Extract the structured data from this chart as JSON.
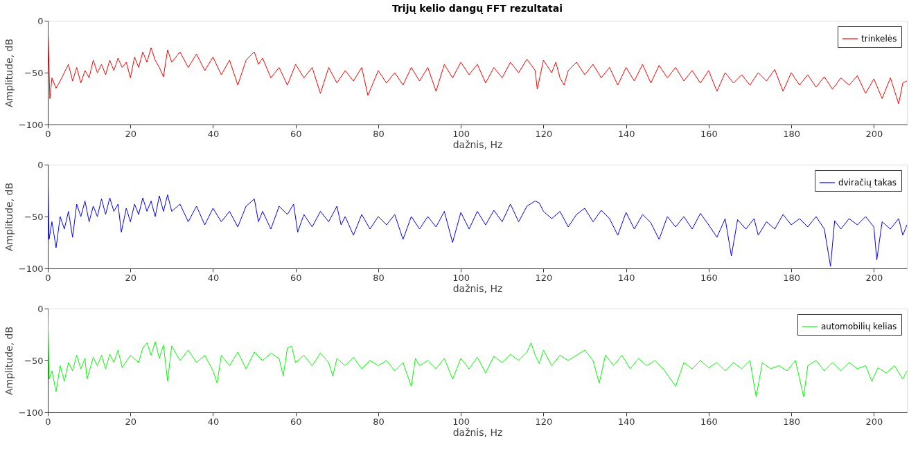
{
  "chart_data": [
    {
      "type": "line",
      "title": "Trijų kelio dangų FFT rezultatai",
      "xlabel": "dažnis, Hz",
      "ylabel": "Amplitude, dB",
      "xlim": [
        0,
        208
      ],
      "xticks": [
        0,
        20,
        40,
        60,
        80,
        100,
        120,
        140,
        160,
        180,
        200
      ],
      "ylim": [
        -100,
        0
      ],
      "yticks": [
        -100,
        -50,
        0
      ],
      "grid": false,
      "legend": "top right",
      "line_style": "solid",
      "marker": "none",
      "series": [
        {
          "name": "trinkelės",
          "color": "#ff0000",
          "x": [
            0,
            0.5,
            1,
            2,
            3,
            4,
            5,
            6,
            7,
            8,
            9,
            10,
            11,
            12,
            13,
            14,
            15,
            16,
            17,
            18,
            19,
            20,
            21,
            22,
            23,
            24,
            25,
            26,
            27,
            28,
            29,
            30,
            32,
            34,
            36,
            38,
            40,
            42,
            44,
            46,
            48,
            50,
            51,
            52,
            54,
            56,
            58,
            60,
            62,
            64,
            66,
            68,
            70,
            72,
            74,
            76,
            77.5,
            80,
            82,
            84,
            86,
            88,
            90,
            92,
            94,
            96,
            98,
            100,
            102,
            104,
            106,
            108,
            110,
            112,
            114,
            116,
            118,
            118.5,
            120,
            122,
            123,
            124,
            125,
            126,
            128,
            130,
            132,
            134,
            136,
            138,
            140,
            142,
            144,
            146,
            148,
            150,
            152,
            154,
            156,
            158,
            160,
            162,
            164,
            166,
            168,
            170,
            172,
            174,
            176,
            178,
            180,
            182,
            184,
            186,
            188,
            190,
            192,
            194,
            196,
            198,
            200,
            202,
            204,
            206,
            207,
            208
          ],
          "values": [
            0,
            -75,
            -55,
            -65,
            -58,
            -50,
            -42,
            -58,
            -45,
            -60,
            -48,
            -55,
            -38,
            -50,
            -42,
            -52,
            -38,
            -48,
            -36,
            -45,
            -40,
            -55,
            -35,
            -45,
            -30,
            -40,
            -26,
            -38,
            -45,
            -54,
            -28,
            -40,
            -30,
            -45,
            -32,
            -48,
            -35,
            -52,
            -38,
            -62,
            -38,
            -30,
            -42,
            -36,
            -55,
            -45,
            -62,
            -42,
            -55,
            -45,
            -70,
            -45,
            -60,
            -48,
            -58,
            -45,
            -72,
            -48,
            -60,
            -50,
            -62,
            -45,
            -58,
            -45,
            -68,
            -42,
            -55,
            -40,
            -52,
            -42,
            -60,
            -45,
            -55,
            -40,
            -50,
            -37,
            -48,
            -66,
            -38,
            -50,
            -40,
            -55,
            -62,
            -48,
            -40,
            -52,
            -42,
            -55,
            -45,
            -62,
            -45,
            -58,
            -42,
            -60,
            -43,
            -55,
            -45,
            -58,
            -48,
            -60,
            -48,
            -68,
            -50,
            -60,
            -52,
            -62,
            -50,
            -58,
            -47,
            -68,
            -50,
            -62,
            -52,
            -64,
            -54,
            -66,
            -55,
            -62,
            -53,
            -70,
            -56,
            -75,
            -55,
            -80,
            -60,
            -58
          ]
        }
      ]
    },
    {
      "type": "line",
      "xlabel": "dažnis, Hz",
      "ylabel": "Amplitude, dB",
      "xlim": [
        0,
        208
      ],
      "xticks": [
        0,
        20,
        40,
        60,
        80,
        100,
        120,
        140,
        160,
        180,
        200
      ],
      "ylim": [
        -100,
        0
      ],
      "yticks": [
        -100,
        -50,
        0
      ],
      "grid": false,
      "legend": "top right",
      "line_style": "solid",
      "marker": "none",
      "series": [
        {
          "name": "dviračių takas",
          "color": "#0000ff",
          "x": [
            0,
            0.3,
            1,
            2,
            3,
            4,
            5,
            6,
            7,
            8,
            9,
            10,
            11,
            12,
            13,
            14,
            15,
            16,
            17,
            17.8,
            19,
            20,
            21,
            22,
            23,
            24,
            25,
            26,
            27,
            28,
            29,
            30,
            32,
            34,
            36,
            38,
            40,
            42,
            44,
            46,
            48,
            50,
            51,
            52,
            54,
            56,
            58,
            59.5,
            60.5,
            62,
            64,
            66,
            68,
            70,
            71,
            72,
            74,
            76,
            78,
            80,
            82,
            84,
            86,
            88,
            90,
            92,
            94,
            96,
            98,
            100,
            102,
            104,
            106,
            108,
            110,
            112,
            114,
            116,
            118,
            119,
            120,
            122,
            124,
            126,
            128,
            130,
            132,
            134,
            136,
            138,
            140,
            142,
            144,
            146,
            148,
            150,
            152,
            154,
            156,
            158,
            160,
            162,
            164,
            165.5,
            167,
            169,
            171,
            172,
            174,
            176,
            178,
            180,
            182,
            184,
            186,
            188,
            189.5,
            190.5,
            192,
            194,
            196,
            198,
            200,
            200.7,
            202,
            204,
            206,
            207,
            208
          ],
          "values": [
            0,
            -72,
            -55,
            -80,
            -50,
            -62,
            -45,
            -70,
            -38,
            -50,
            -35,
            -55,
            -40,
            -50,
            -33,
            -48,
            -32,
            -45,
            -38,
            -65,
            -42,
            -55,
            -38,
            -48,
            -32,
            -45,
            -35,
            -50,
            -30,
            -45,
            -29,
            -45,
            -38,
            -55,
            -40,
            -58,
            -42,
            -55,
            -45,
            -60,
            -40,
            -33,
            -55,
            -45,
            -62,
            -40,
            -48,
            -38,
            -65,
            -48,
            -60,
            -45,
            -55,
            -40,
            -58,
            -50,
            -68,
            -48,
            -62,
            -50,
            -58,
            -48,
            -72,
            -50,
            -62,
            -50,
            -60,
            -45,
            -75,
            -46,
            -62,
            -45,
            -58,
            -44,
            -55,
            -38,
            -55,
            -40,
            -35,
            -37,
            -45,
            -52,
            -45,
            -60,
            -48,
            -42,
            -55,
            -44,
            -52,
            -68,
            -46,
            -62,
            -48,
            -56,
            -72,
            -50,
            -60,
            -50,
            -62,
            -47,
            -58,
            -70,
            -52,
            -88,
            -53,
            -62,
            -52,
            -68,
            -55,
            -62,
            -48,
            -58,
            -52,
            -60,
            -50,
            -62,
            -98,
            -54,
            -62,
            -52,
            -58,
            -50,
            -60,
            -92,
            -55,
            -62,
            -52,
            -68,
            -58
          ]
        }
      ]
    },
    {
      "type": "line",
      "xlabel": "dažnis, Hz",
      "ylabel": "Amplitude, dB",
      "xlim": [
        0,
        208
      ],
      "xticks": [
        0,
        20,
        40,
        60,
        80,
        100,
        120,
        140,
        160,
        180,
        200
      ],
      "ylim": [
        -100,
        0
      ],
      "yticks": [
        -100,
        -50,
        0
      ],
      "grid": false,
      "legend": "top right",
      "line_style": "solid",
      "marker": "none",
      "series": [
        {
          "name": "automobilių kelias",
          "color": "#00ff00",
          "x": [
            0,
            0.3,
            1,
            2,
            3,
            4,
            5,
            6,
            7,
            8,
            9,
            9.5,
            11,
            12,
            13,
            14,
            15,
            16,
            17,
            18,
            20,
            22,
            23,
            24,
            25,
            26,
            27,
            28,
            29,
            30,
            32,
            34,
            36,
            38,
            40,
            41,
            42,
            44,
            46,
            48,
            50,
            52,
            54,
            56,
            57,
            58,
            59,
            60,
            62,
            64,
            66,
            68,
            69,
            70,
            72,
            74,
            76,
            78,
            80,
            82,
            84,
            86,
            88,
            89,
            90,
            92,
            94,
            96,
            98,
            100,
            102,
            104,
            106,
            108,
            110,
            112,
            114,
            116,
            117,
            118,
            119,
            120,
            122,
            124,
            126,
            128,
            130,
            132,
            133.5,
            135,
            137,
            139,
            141,
            143,
            145,
            147,
            149,
            152,
            154,
            156,
            158,
            160,
            162,
            164,
            166,
            168,
            170,
            171.5,
            173,
            175,
            177,
            179,
            181,
            183,
            184,
            186,
            188,
            190,
            192,
            194,
            196,
            198,
            199.5,
            201,
            203,
            205,
            207,
            208
          ],
          "values": [
            0,
            -68,
            -60,
            -80,
            -55,
            -70,
            -52,
            -60,
            -45,
            -58,
            -48,
            -68,
            -47,
            -55,
            -45,
            -58,
            -44,
            -52,
            -40,
            -57,
            -45,
            -52,
            -38,
            -33,
            -45,
            -32,
            -48,
            -35,
            -70,
            -36,
            -50,
            -40,
            -52,
            -45,
            -60,
            -72,
            -45,
            -55,
            -42,
            -58,
            -42,
            -50,
            -43,
            -48,
            -65,
            -38,
            -36,
            -52,
            -45,
            -55,
            -43,
            -52,
            -65,
            -48,
            -55,
            -47,
            -58,
            -50,
            -55,
            -50,
            -60,
            -52,
            -75,
            -48,
            -55,
            -50,
            -58,
            -48,
            -68,
            -48,
            -58,
            -47,
            -62,
            -46,
            -52,
            -44,
            -50,
            -42,
            -33,
            -45,
            -53,
            -40,
            -55,
            -45,
            -50,
            -45,
            -40,
            -50,
            -72,
            -45,
            -55,
            -45,
            -58,
            -48,
            -55,
            -50,
            -58,
            -75,
            -52,
            -58,
            -50,
            -57,
            -52,
            -60,
            -52,
            -58,
            -50,
            -85,
            -52,
            -58,
            -55,
            -60,
            -50,
            -85,
            -55,
            -50,
            -60,
            -52,
            -60,
            -52,
            -58,
            -55,
            -70,
            -57,
            -62,
            -55,
            -68,
            -60
          ]
        }
      ]
    }
  ]
}
